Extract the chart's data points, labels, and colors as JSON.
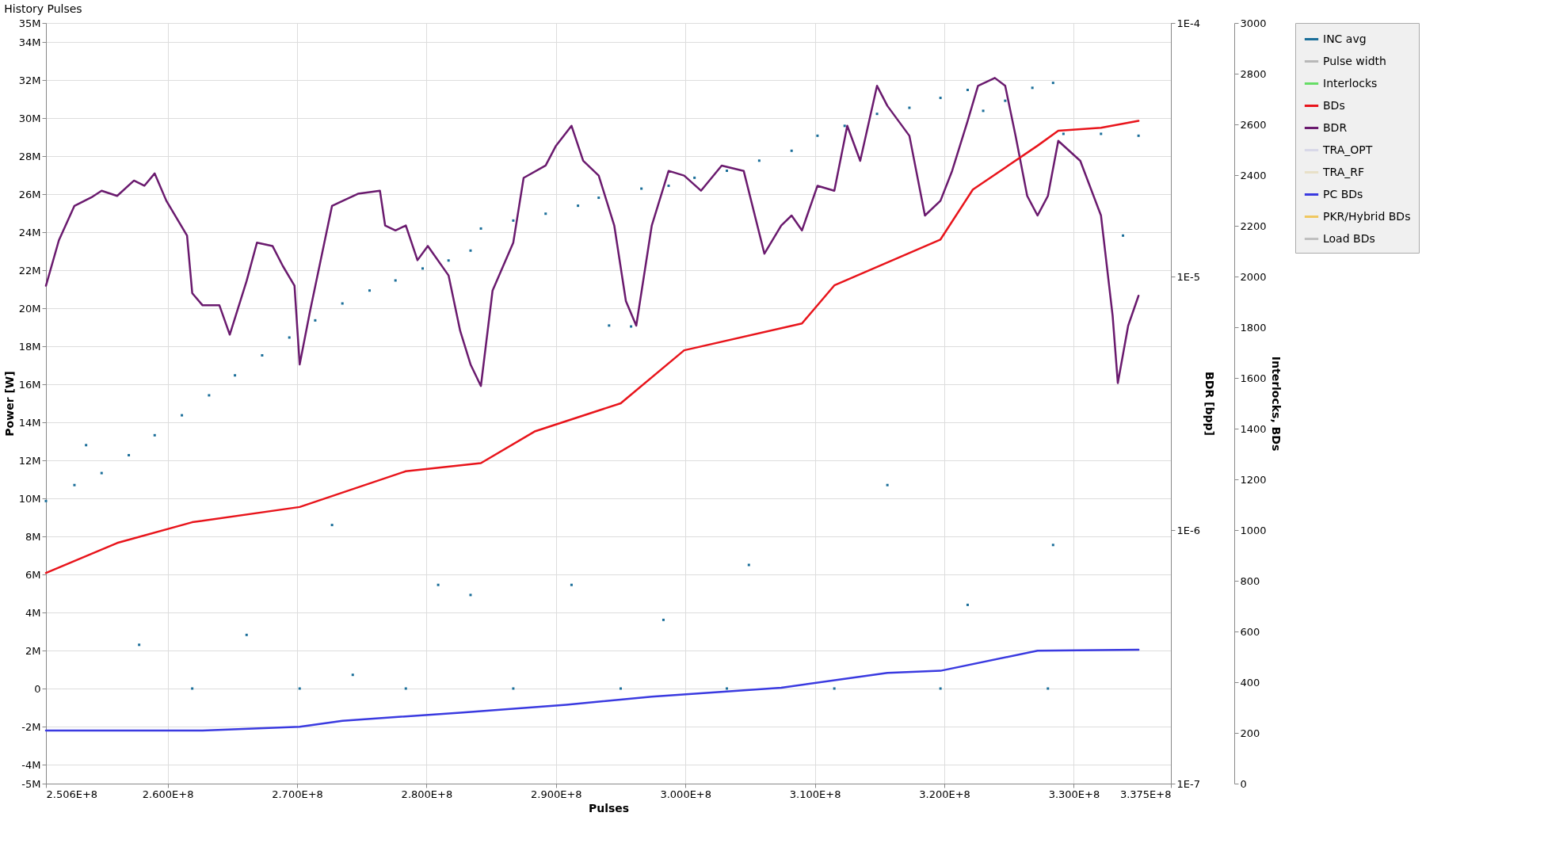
{
  "chart_data": {
    "type": "line",
    "title": "History Pulses",
    "xlabel": "Pulses",
    "ylabel": "Power [W]",
    "y2label": "BDR [bpp]",
    "y3label": "Interlocks, BDs",
    "xlim": [
      250600000,
      337500000
    ],
    "xticks": [
      {
        "value": 250600000,
        "label": "2.506E+8"
      },
      {
        "value": 260000000,
        "label": "2.600E+8"
      },
      {
        "value": 270000000,
        "label": "2.700E+8"
      },
      {
        "value": 280000000,
        "label": "2.800E+8"
      },
      {
        "value": 290000000,
        "label": "2.900E+8"
      },
      {
        "value": 300000000,
        "label": "3.000E+8"
      },
      {
        "value": 310000000,
        "label": "3.100E+8"
      },
      {
        "value": 320000000,
        "label": "3.200E+8"
      },
      {
        "value": 330000000,
        "label": "3.300E+8"
      },
      {
        "value": 337500000,
        "label": "3.375E+8"
      }
    ],
    "ylim": [
      -5000000,
      35000000
    ],
    "yticks": [
      {
        "value": -5000000,
        "label": "-5M"
      },
      {
        "value": -4000000,
        "label": "-4M"
      },
      {
        "value": -2000000,
        "label": "-2M"
      },
      0,
      {
        "value": 2000000,
        "label": "2M"
      },
      {
        "value": 4000000,
        "label": "4M"
      },
      {
        "value": 6000000,
        "label": "6M"
      },
      {
        "value": 8000000,
        "label": "8M"
      },
      {
        "value": 10000000,
        "label": "10M"
      },
      {
        "value": 12000000,
        "label": "12M"
      },
      {
        "value": 14000000,
        "label": "14M"
      },
      {
        "value": 16000000,
        "label": "16M"
      },
      {
        "value": 18000000,
        "label": "18M"
      },
      {
        "value": 20000000,
        "label": "20M"
      },
      {
        "value": 22000000,
        "label": "22M"
      },
      {
        "value": 24000000,
        "label": "24M"
      },
      {
        "value": 26000000,
        "label": "26M"
      },
      {
        "value": 28000000,
        "label": "28M"
      },
      {
        "value": 30000000,
        "label": "30M"
      },
      {
        "value": 32000000,
        "label": "32M"
      },
      {
        "value": 34000000,
        "label": "34M"
      },
      {
        "value": 35000000,
        "label": "35M"
      }
    ],
    "y2lim": [
      1e-07,
      0.0001
    ],
    "y2ticks": [
      {
        "value": 1e-07,
        "label": "1E-7"
      },
      {
        "value": 1e-06,
        "label": "1E-6"
      },
      {
        "value": 1e-05,
        "label": "1E-5"
      },
      {
        "value": 0.0001,
        "label": "1E-4"
      }
    ],
    "y3lim": [
      0,
      3000
    ],
    "y3ticks": [
      0,
      200,
      400,
      600,
      800,
      1000,
      1200,
      1400,
      1600,
      1800,
      2000,
      2200,
      2400,
      2600,
      2800,
      3000
    ],
    "log": "y2",
    "grid": true,
    "legend": "right",
    "series": [
      {
        "name": "INC avg",
        "type": "scatter",
        "color": "#1a6e99",
        "x": [
          250600000,
          252800000,
          254900000,
          257000000,
          259000000,
          261100000,
          263200000,
          265200000,
          267300000,
          269400000,
          271400000,
          273500000,
          275600000,
          277600000,
          279700000,
          281700000,
          283400000,
          284200000,
          286700000,
          289200000,
          291700000,
          293300000,
          294100000,
          295800000,
          296600000,
          298700000,
          300700000,
          303200000,
          305700000,
          308200000,
          310200000,
          312300000,
          314800000,
          317300000,
          319700000,
          321800000,
          323000000,
          324700000,
          326800000,
          328400000,
          329200000,
          332100000,
          335000000,
          261900000,
          270200000,
          278400000,
          286700000,
          295000000,
          303200000,
          311500000,
          319700000,
          328000000,
          280900000,
          283400000,
          291200000,
          328400000,
          321800000,
          266100000,
          274300000,
          257800000,
          304900000,
          315600000,
          333800000,
          298300000,
          253700000,
          272700000
        ],
        "values": [
          9860000,
          10700000,
          11330000,
          12270000,
          13320000,
          14370000,
          15420000,
          16470000,
          17520000,
          18460000,
          19360000,
          20250000,
          20930000,
          21460000,
          22090000,
          22510000,
          23030000,
          24190000,
          24610000,
          24970000,
          25390000,
          25810000,
          19090000,
          19040000,
          26290000,
          26440000,
          26860000,
          27230000,
          27760000,
          28280000,
          29070000,
          29590000,
          30220000,
          30540000,
          31060000,
          31480000,
          30380000,
          30910000,
          31590000,
          31850000,
          29170000,
          29170000,
          29070000,
          0,
          0,
          0,
          0,
          0,
          0,
          0,
          0,
          0,
          5450000,
          4920000,
          5450000,
          7550000,
          4400000,
          2820000,
          720000,
          2300000,
          6500000,
          10700000,
          23820000,
          3610000,
          12800000,
          8600000
        ]
      },
      {
        "name": "Pulse width",
        "type": "scatter",
        "color": "#b8b8b8"
      },
      {
        "name": "Interlocks",
        "color": "#66dd66",
        "axis": "y3"
      },
      {
        "name": "BDs",
        "color": "#e8141b",
        "axis": "y3",
        "x": [
          250600000,
          256100000,
          261900000,
          270200000,
          278400000,
          284200000,
          288400000,
          295000000,
          299900000,
          309000000,
          311500000,
          319700000,
          322200000,
          327200000,
          328800000,
          332100000,
          335000000
        ],
        "values": [
          831,
          949,
          1031,
          1091,
          1232,
          1264,
          1390,
          1500,
          1709,
          1815,
          1965,
          2146,
          2343,
          2516,
          2575,
          2587,
          2614
        ]
      },
      {
        "name": "BDR",
        "color": "#6a1a6e",
        "axis": "y2",
        "x": [
          250600000,
          251600000,
          252800000,
          254100000,
          254900000,
          256100000,
          257400000,
          258200000,
          259000000,
          259900000,
          261500000,
          261900000,
          262700000,
          264000000,
          264800000,
          266100000,
          266900000,
          268100000,
          268900000,
          269800000,
          270200000,
          271000000,
          272700000,
          274700000,
          276400000,
          276800000,
          277600000,
          278400000,
          279300000,
          280100000,
          281700000,
          282600000,
          283400000,
          284200000,
          285100000,
          286700000,
          287500000,
          289200000,
          290000000,
          291200000,
          292100000,
          293300000,
          294500000,
          295400000,
          296200000,
          297400000,
          298700000,
          299900000,
          301200000,
          302800000,
          304500000,
          306100000,
          307400000,
          308200000,
          309000000,
          310200000,
          311500000,
          312500000,
          313500000,
          314800000,
          315600000,
          317300000,
          318500000,
          319700000,
          320600000,
          321800000,
          322600000,
          323900000,
          324700000,
          325500000,
          326400000,
          327200000,
          328000000,
          328800000,
          330500000,
          332100000,
          333000000,
          333400000,
          334200000,
          335000000
        ],
        "values": [
          9.2e-06,
          1.39e-05,
          1.9e-05,
          2.05e-05,
          2.18e-05,
          2.08e-05,
          2.39e-05,
          2.28e-05,
          2.55e-05,
          1.99e-05,
          1.45e-05,
          8.6e-06,
          7.7e-06,
          7.7e-06,
          5.9e-06,
          9.6e-06,
          1.36e-05,
          1.32e-05,
          1.1e-05,
          9.2e-06,
          4.5e-06,
          7.3e-06,
          1.9e-05,
          2.12e-05,
          2.18e-05,
          1.59e-05,
          1.52e-05,
          1.59e-05,
          1.16e-05,
          1.32e-05,
          1.01e-05,
          6.1e-06,
          4.5e-06,
          3.7e-06,
          8.8e-06,
          1.36e-05,
          2.45e-05,
          2.74e-05,
          3.28e-05,
          3.93e-05,
          2.86e-05,
          2.5e-05,
          1.59e-05,
          8e-06,
          6.4e-06,
          1.59e-05,
          2.61e-05,
          2.5e-05,
          2.18e-05,
          2.74e-05,
          2.61e-05,
          1.23e-05,
          1.59e-05,
          1.74e-05,
          1.52e-05,
          2.28e-05,
          2.18e-05,
          3.93e-05,
          2.86e-05,
          5.65e-05,
          4.71e-05,
          3.59e-05,
          1.74e-05,
          1.99e-05,
          2.61e-05,
          4.11e-05,
          5.65e-05,
          6.07e-05,
          5.65e-05,
          3.59e-05,
          2.08e-05,
          1.74e-05,
          2.08e-05,
          3.43e-05,
          2.86e-05,
          1.74e-05,
          7e-06,
          3.8e-06,
          6.4e-06,
          8.4e-06
        ]
      },
      {
        "name": "TRA_OPT",
        "type": "scatter",
        "color": "#d8d8e8"
      },
      {
        "name": "TRA_RF",
        "type": "scatter",
        "color": "#e8e0c8"
      },
      {
        "name": "PC BDs",
        "color": "#3a3ae0",
        "axis": "y3",
        "x": [
          250600000,
          262700000,
          270200000,
          273500000,
          282600000,
          290800000,
          297400000,
          307400000,
          315600000,
          319700000,
          327200000,
          335000000
        ],
        "values": [
          209,
          209,
          224,
          248,
          280,
          311,
          343,
          378,
          437,
          445,
          524,
          528
        ]
      },
      {
        "name": "PKR/Hybrid BDs",
        "color": "#f0c860",
        "axis": "y3"
      },
      {
        "name": "Load BDs",
        "color": "#c0c0c0",
        "axis": "y3"
      }
    ]
  }
}
